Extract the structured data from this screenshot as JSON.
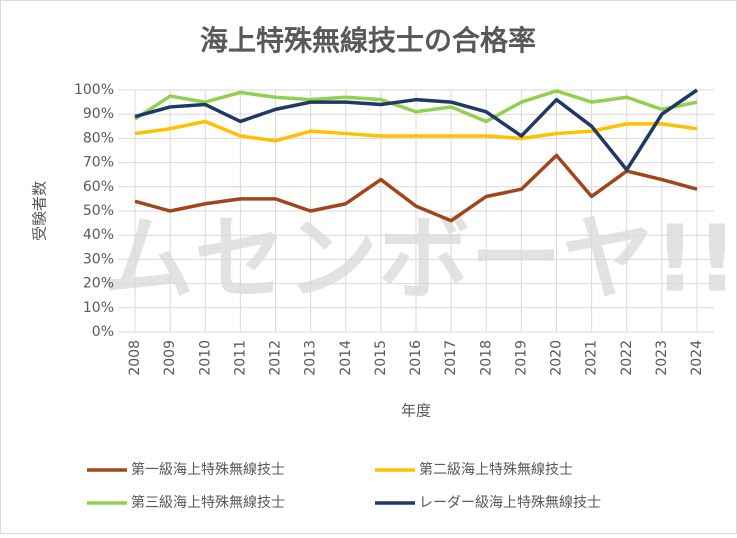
{
  "chart_data": {
    "type": "line",
    "title": "海上特殊無線技士の合格率",
    "y_label": "受験者数",
    "x_label": "年度",
    "watermark": "ムセンボーヤ!!",
    "categories": [
      "2008",
      "2009",
      "2010",
      "2011",
      "2012",
      "2013",
      "2014",
      "2015",
      "2016",
      "2017",
      "2018",
      "2019",
      "2020",
      "2021",
      "2022",
      "2023",
      "2024"
    ],
    "series": [
      {
        "name": "第一級海上特殊無線技士",
        "color": "#a0461b",
        "values": [
          54,
          50,
          53,
          55,
          55,
          50,
          53,
          63,
          52,
          46,
          56,
          59,
          73,
          56,
          66.5,
          63,
          59
        ]
      },
      {
        "name": "第二級海上特殊無線技士",
        "color": "#ffc000",
        "values": [
          82,
          84,
          87,
          81,
          79,
          83,
          82,
          81,
          81,
          81,
          81,
          80,
          82,
          83,
          86,
          86,
          84
        ]
      },
      {
        "name": "第三級海上特殊無線技士",
        "color": "#92d050",
        "values": [
          88,
          97.5,
          95,
          99,
          97,
          96,
          97,
          96,
          91,
          93,
          87,
          95,
          99.6,
          95,
          97,
          92,
          95
        ]
      },
      {
        "name": "レーダー級海上特殊無線技士",
        "color": "#203864",
        "values": [
          89,
          93,
          94,
          87,
          92,
          95,
          95,
          94,
          96,
          95,
          91,
          81,
          96,
          85,
          67,
          90,
          100
        ]
      }
    ],
    "ylim": [
      0,
      100
    ],
    "yticks": [
      {
        "value": 0,
        "label": "0%"
      },
      {
        "value": 10,
        "label": "10%"
      },
      {
        "value": 20,
        "label": "20%"
      },
      {
        "value": 30,
        "label": "30%"
      },
      {
        "value": 40,
        "label": "40%"
      },
      {
        "value": 50,
        "label": "50%"
      },
      {
        "value": 60,
        "label": "60%"
      },
      {
        "value": 70,
        "label": "70%"
      },
      {
        "value": 80,
        "label": "80%"
      },
      {
        "value": 90,
        "label": "90%"
      },
      {
        "value": 100,
        "label": "100%"
      }
    ],
    "grid": true
  }
}
